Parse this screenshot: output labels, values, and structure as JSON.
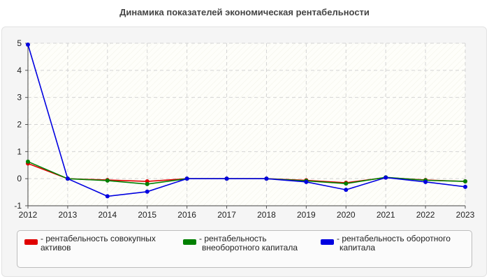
{
  "chart_data": {
    "type": "line",
    "title": "Динамика показателей экономическая рентабельности",
    "x": [
      "2012",
      "2013",
      "2014",
      "2015",
      "2016",
      "2017",
      "2018",
      "2019",
      "2020",
      "2021",
      "2022",
      "2023"
    ],
    "ylim": [
      -1,
      5
    ],
    "yticks": [
      "-1",
      "0",
      "1",
      "2",
      "3",
      "4",
      "5"
    ],
    "grid": true,
    "legend_position": "bottom",
    "series": [
      {
        "name": "- рентабельность совокупных активов",
        "legend_lines": [
          "- рентабельность совокупных",
          "активов"
        ],
        "color": "#e00000",
        "values": [
          0.56,
          0.0,
          -0.05,
          -0.1,
          0.0,
          0.0,
          0.0,
          -0.06,
          -0.15,
          0.04,
          -0.05,
          -0.1
        ]
      },
      {
        "name": "- рентабельность внеоборотного капитала",
        "legend_lines": [
          "- рентабельность",
          "внеоборотного капитала"
        ],
        "color": "#008000",
        "values": [
          0.63,
          0.0,
          -0.07,
          -0.2,
          0.0,
          0.0,
          0.0,
          -0.08,
          -0.18,
          0.05,
          -0.06,
          -0.1
        ]
      },
      {
        "name": "- рентабельность оборотного капитала",
        "legend_lines": [
          "- рентабельность оборотного",
          "капитала"
        ],
        "color": "#0000e0",
        "values": [
          4.95,
          0.0,
          -0.65,
          -0.48,
          0.0,
          0.0,
          0.0,
          -0.12,
          -0.41,
          0.04,
          -0.12,
          -0.3
        ]
      }
    ]
  }
}
